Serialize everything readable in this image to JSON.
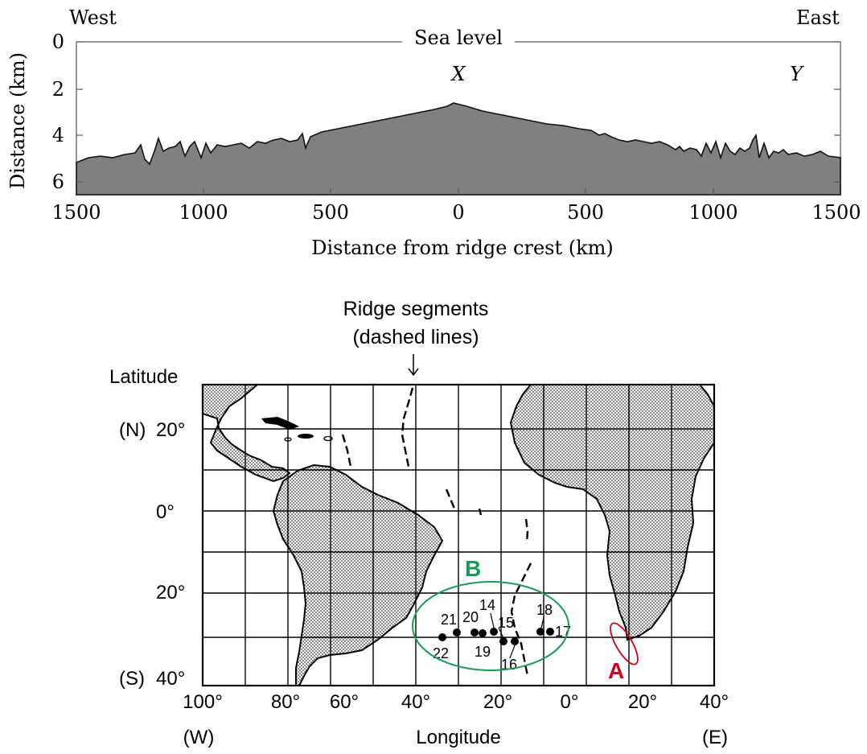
{
  "profile": {
    "west": "West",
    "east": "East",
    "sea_level": "Sea level",
    "x_marker": "X",
    "y_marker": "Y",
    "ylabel": "Distance (km)",
    "xlabel": "Distance from ridge crest (km)",
    "y_ticks": [
      "0",
      "2",
      "4",
      "6"
    ],
    "x_ticks": [
      "1500",
      "1000",
      "500",
      "0",
      "500",
      "1000",
      "1500"
    ]
  },
  "map": {
    "ridge_label_line1": "Ridge segments",
    "ridge_label_line2": "(dashed lines)",
    "latitude_label": "Latitude",
    "lat_ticks": [
      "20°",
      "0°",
      "20°",
      "40°"
    ],
    "north": "(N)",
    "south": "(S)",
    "lon_ticks": [
      "100°",
      "80°",
      "60°",
      "40°",
      "20°",
      "0°",
      "20°",
      "40°"
    ],
    "west_hemi": "(W)",
    "longitude_label": "Longitude",
    "east_hemi": "(E)",
    "label_a": "A",
    "label_b": "B",
    "sites": [
      "21",
      "20",
      "14",
      "15",
      "18",
      "17",
      "22",
      "19",
      "16"
    ],
    "color_a": "#d0021b",
    "color_b": "#1a9a5a"
  }
}
